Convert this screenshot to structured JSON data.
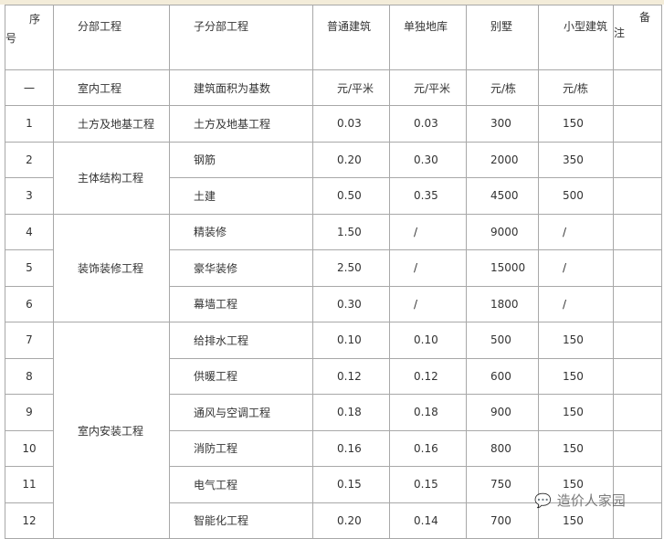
{
  "header": {
    "seq": "序号",
    "seq_a": "序",
    "seq_b": "号",
    "division": "分部工程",
    "subdivision": "子分部工程",
    "c1": "普通建筑",
    "c2": "单独地库",
    "c3": "别墅",
    "c4": "小型建筑",
    "remark_a": "备",
    "remark_b": "注"
  },
  "unit_row": {
    "seq": "一",
    "division": "室内工程",
    "subdivision": "建筑面积为基数",
    "c1": "元/平米",
    "c2": "元/平米",
    "c3": "元/栋",
    "c4": "元/栋"
  },
  "groups": {
    "g1": "土方及地基工程",
    "g2": "主体结构工程",
    "g3": "装饰装修工程",
    "g4": "室内安装工程"
  },
  "rows": [
    {
      "seq": "1",
      "sub": "土方及地基工程",
      "c1": "0.03",
      "c2": "0.03",
      "c3": "300",
      "c4": "150"
    },
    {
      "seq": "2",
      "sub": "钢筋",
      "c1": "0.20",
      "c2": "0.30",
      "c3": "2000",
      "c4": "350"
    },
    {
      "seq": "3",
      "sub": "土建",
      "c1": "0.50",
      "c2": "0.35",
      "c3": "4500",
      "c4": "500"
    },
    {
      "seq": "4",
      "sub": "精装修",
      "c1": "1.50",
      "c2": "/",
      "c3": "9000",
      "c4": "/"
    },
    {
      "seq": "5",
      "sub": "豪华装修",
      "c1": "2.50",
      "c2": "/",
      "c3": "15000",
      "c4": "/"
    },
    {
      "seq": "6",
      "sub": "幕墙工程",
      "c1": "0.30",
      "c2": "/",
      "c3": "1800",
      "c4": "/"
    },
    {
      "seq": "7",
      "sub": "给排水工程",
      "c1": "0.10",
      "c2": "0.10",
      "c3": "500",
      "c4": "150"
    },
    {
      "seq": "8",
      "sub": "供暖工程",
      "c1": "0.12",
      "c2": "0.12",
      "c3": "600",
      "c4": "150"
    },
    {
      "seq": "9",
      "sub": "通风与空调工程",
      "c1": "0.18",
      "c2": "0.18",
      "c3": "900",
      "c4": "150"
    },
    {
      "seq": "10",
      "sub": "消防工程",
      "c1": "0.16",
      "c2": "0.16",
      "c3": "800",
      "c4": "150"
    },
    {
      "seq": "11",
      "sub": "电气工程",
      "c1": "0.15",
      "c2": "0.15",
      "c3": "750",
      "c4": "150"
    },
    {
      "seq": "12",
      "sub": "智能化工程",
      "c1": "0.20",
      "c2": "0.14",
      "c3": "700",
      "c4": "150"
    }
  ],
  "watermark": "造价人家园"
}
